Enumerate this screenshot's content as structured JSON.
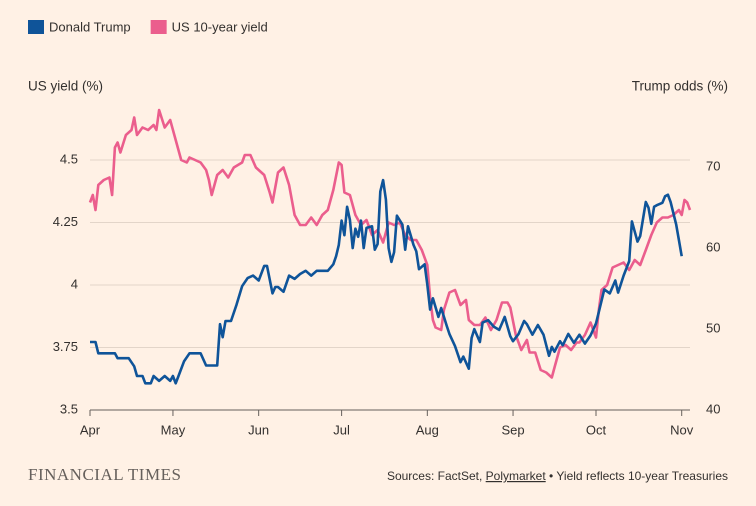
{
  "chart_data": {
    "type": "line",
    "y_label": "US yield (%)",
    "y2_label": "Trump odds (%)",
    "xlim": [
      0,
      217
    ],
    "xticks": [
      {
        "value": 0,
        "label": "Apr"
      },
      {
        "value": 30,
        "label": "May"
      },
      {
        "value": 61,
        "label": "Jun"
      },
      {
        "value": 91,
        "label": "Jul"
      },
      {
        "value": 122,
        "label": "Aug"
      },
      {
        "value": 153,
        "label": "Sep"
      },
      {
        "value": 183,
        "label": "Oct"
      },
      {
        "value": 214,
        "label": "Nov"
      }
    ],
    "ylim": [
      3.5,
      4.74
    ],
    "yticks": [
      3.5,
      3.75,
      4,
      4.25,
      4.5
    ],
    "y2lim": [
      40,
      78.3
    ],
    "y2ticks": [
      40,
      50,
      60,
      70
    ],
    "grid": true,
    "series": [
      {
        "name": "Donald Trump",
        "color": "#0f5499",
        "axis": "y2",
        "x": [
          0,
          2,
          3,
          6,
          9,
          10,
          14,
          16,
          17,
          19,
          20,
          22,
          23,
          25,
          27,
          29,
          30,
          31,
          32,
          34,
          36,
          38,
          40,
          42,
          44,
          46,
          47,
          48,
          49,
          51,
          53,
          55,
          57,
          59,
          61,
          63,
          64,
          66,
          67,
          68,
          70,
          72,
          74,
          76,
          78,
          80,
          82,
          84,
          86,
          88,
          89,
          90,
          91,
          92,
          93,
          94,
          95,
          96,
          97,
          98,
          99,
          100,
          102,
          103,
          104,
          105,
          106,
          107,
          108,
          109,
          110,
          111,
          113,
          114,
          115,
          117,
          118,
          119,
          121,
          122,
          123,
          124,
          126,
          127,
          129,
          130,
          132,
          134,
          135,
          137,
          138,
          139,
          141,
          142,
          144,
          146,
          148,
          150,
          152,
          153,
          155,
          157,
          158,
          160,
          162,
          164,
          166,
          167,
          168,
          170,
          171,
          173,
          175,
          177,
          179,
          181,
          183,
          184,
          186,
          188,
          190,
          191,
          193,
          195,
          196,
          198,
          199,
          201,
          202,
          203,
          204,
          205,
          207,
          208,
          209,
          210,
          212,
          213,
          214
        ],
        "values": [
          48.4,
          48.4,
          47.0,
          47.0,
          47.0,
          46.4,
          46.4,
          45.4,
          44.2,
          44.2,
          43.3,
          43.3,
          44.2,
          43.6,
          44.2,
          43.6,
          44.2,
          43.3,
          44.2,
          46.0,
          47.0,
          47.0,
          47.0,
          45.5,
          45.5,
          45.5,
          50.6,
          49.0,
          51.0,
          51.0,
          53.0,
          55.3,
          56.3,
          56.6,
          56.0,
          57.8,
          57.8,
          54.4,
          55.2,
          55.2,
          54.6,
          56.6,
          56.2,
          56.8,
          57.2,
          56.6,
          57.2,
          57.2,
          57.2,
          58.0,
          59.0,
          60.4,
          63.4,
          61.6,
          65.1,
          63.5,
          60.0,
          62.4,
          61.4,
          63.4,
          60.0,
          62.5,
          62.7,
          59.8,
          60.5,
          67.0,
          68.4,
          66.0,
          60.0,
          58.3,
          59.5,
          64.0,
          62.9,
          59.8,
          62.7,
          60.4,
          59.6,
          57.4,
          58.0,
          55.5,
          52.4,
          53.8,
          51.5,
          52.6,
          50.4,
          49.4,
          47.9,
          45.9,
          46.6,
          45.1,
          48.9,
          50.0,
          48.4,
          50.8,
          51.1,
          50.3,
          49.9,
          51.5,
          49.1,
          48.5,
          49.4,
          51.0,
          50.6,
          49.3,
          50.5,
          49.3,
          46.7,
          47.8,
          47.2,
          48.5,
          48.0,
          49.4,
          48.3,
          49.3,
          48.2,
          49.2,
          50.7,
          52.1,
          54.9,
          54.4,
          56.0,
          54.5,
          56.6,
          58.4,
          63.3,
          60.8,
          61.5,
          65.7,
          65.0,
          63.0,
          65.1,
          65.3,
          65.6,
          66.4,
          66.6,
          65.7,
          62.9,
          61.0,
          59.0
        ]
      },
      {
        "name": "US 10-year yield",
        "color": "#eb5e8d",
        "axis": "y",
        "x": [
          0,
          1,
          2,
          3,
          5,
          7,
          8,
          9,
          10,
          11,
          13,
          15,
          16,
          17,
          19,
          21,
          23,
          24,
          25,
          27,
          29,
          31,
          33,
          35,
          36,
          38,
          40,
          42,
          43,
          44,
          46,
          48,
          50,
          52,
          55,
          56,
          58,
          60,
          63,
          65,
          66,
          68,
          70,
          72,
          74,
          76,
          78,
          80,
          82,
          84,
          86,
          88,
          90,
          91,
          92,
          94,
          96,
          98,
          100,
          102,
          104,
          106,
          108,
          110,
          112,
          114,
          116,
          118,
          120,
          122,
          123,
          124,
          125,
          127,
          128,
          130,
          132,
          134,
          136,
          137,
          139,
          141,
          143,
          145,
          147,
          149,
          151,
          152,
          154,
          156,
          158,
          159,
          161,
          163,
          165,
          167,
          168,
          170,
          172,
          174,
          176,
          177,
          179,
          181,
          183,
          184,
          185,
          187,
          189,
          191,
          193,
          195,
          197,
          199,
          201,
          203,
          205,
          207,
          209,
          211,
          213,
          214,
          215,
          216,
          217
        ],
        "values": [
          4.33,
          4.36,
          4.3,
          4.4,
          4.42,
          4.43,
          4.36,
          4.55,
          4.57,
          4.53,
          4.6,
          4.62,
          4.67,
          4.6,
          4.63,
          4.62,
          4.64,
          4.62,
          4.7,
          4.63,
          4.66,
          4.58,
          4.5,
          4.49,
          4.51,
          4.5,
          4.49,
          4.46,
          4.42,
          4.36,
          4.44,
          4.46,
          4.43,
          4.47,
          4.49,
          4.52,
          4.52,
          4.47,
          4.44,
          4.37,
          4.33,
          4.45,
          4.47,
          4.4,
          4.28,
          4.24,
          4.24,
          4.27,
          4.24,
          4.28,
          4.3,
          4.38,
          4.49,
          4.48,
          4.37,
          4.36,
          4.28,
          4.24,
          4.26,
          4.2,
          4.22,
          4.17,
          4.25,
          4.24,
          4.25,
          4.2,
          4.18,
          4.18,
          4.14,
          4.08,
          3.95,
          3.86,
          3.83,
          3.82,
          3.9,
          3.97,
          3.98,
          3.92,
          3.94,
          3.86,
          3.84,
          3.84,
          3.87,
          3.82,
          3.86,
          3.93,
          3.93,
          3.91,
          3.8,
          3.74,
          3.78,
          3.73,
          3.73,
          3.66,
          3.65,
          3.63,
          3.67,
          3.75,
          3.76,
          3.74,
          3.77,
          3.77,
          3.8,
          3.85,
          3.79,
          3.9,
          3.98,
          4.0,
          4.07,
          4.08,
          4.09,
          4.06,
          4.1,
          4.08,
          4.14,
          4.2,
          4.25,
          4.27,
          4.27,
          4.28,
          4.3,
          4.28,
          4.34,
          4.33,
          4.3
        ]
      }
    ]
  },
  "footer": {
    "brand": "FINANCIAL TIMES",
    "source_prefix": "Sources: FactSet,",
    "source_link": "Polymarket",
    "source_suffix": "• Yield reflects 10-year Treasuries"
  }
}
